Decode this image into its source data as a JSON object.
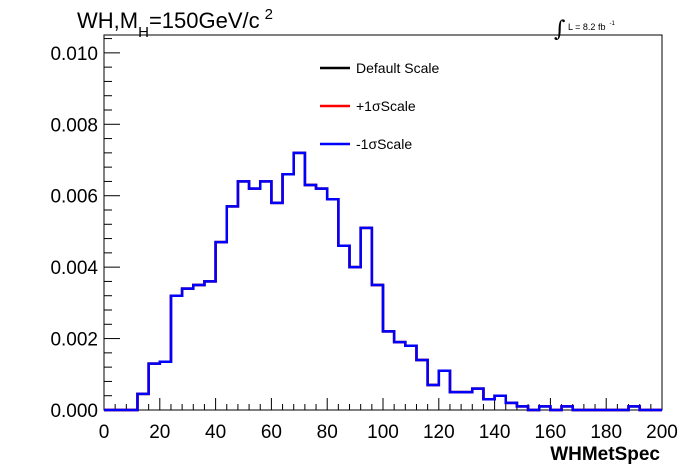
{
  "chart_data": {
    "type": "histogram",
    "title": {
      "prefix": "WH,M",
      "subscript": "H",
      "main": "=150GeV/c",
      "superscript": "2"
    },
    "luminosity": {
      "symbol": "∫",
      "text": "L = 8.2 fb",
      "superscript": "-1"
    },
    "xlabel": "WHMetSpec",
    "ylabel": "",
    "xlim": [
      0,
      200
    ],
    "ylim": [
      0,
      0.0105
    ],
    "xticks": [
      0,
      20,
      40,
      60,
      80,
      100,
      120,
      140,
      160,
      180,
      200
    ],
    "xtick_labels": [
      "0",
      "20",
      "40",
      "60",
      "80",
      "100",
      "120",
      "140",
      "160",
      "180",
      "200"
    ],
    "yticks": [
      0,
      0.002,
      0.004,
      0.006,
      0.008,
      0.01
    ],
    "ytick_labels": [
      "0.000",
      "0.002",
      "0.004",
      "0.006",
      "0.008",
      "0.010"
    ],
    "bin_edges": [
      0,
      4,
      8,
      12,
      16,
      20,
      24,
      28,
      32,
      36,
      40,
      44,
      48,
      52,
      56,
      60,
      64,
      68,
      72,
      76,
      80,
      84,
      88,
      92,
      96,
      100,
      104,
      108,
      112,
      116,
      120,
      124,
      128,
      132,
      136,
      140,
      144,
      148,
      152,
      156,
      160,
      164,
      168,
      172,
      176,
      180,
      184,
      188,
      192,
      196,
      200
    ],
    "legend": {
      "position": "top-center",
      "entries": [
        {
          "label": "Default Scale",
          "color": "#000000"
        },
        {
          "label": "+1σScale",
          "color": "#ff0000"
        },
        {
          "label": "-1σScale",
          "color": "#0000ff"
        }
      ]
    },
    "series": [
      {
        "name": "Default Scale",
        "color": "#000000",
        "values": [
          0,
          0,
          0,
          0.00045,
          0.0013,
          0.00135,
          0.0032,
          0.0034,
          0.0035,
          0.0036,
          0.0047,
          0.0057,
          0.0064,
          0.0062,
          0.0064,
          0.0058,
          0.0066,
          0.0072,
          0.0063,
          0.0062,
          0.0059,
          0.0046,
          0.004,
          0.0051,
          0.0035,
          0.0022,
          0.0019,
          0.0018,
          0.0014,
          0.0007,
          0.0011,
          0.0005,
          0.0005,
          0.0006,
          0.0003,
          0.0004,
          0.0002,
          0.0001,
          0,
          0.0001,
          0,
          0.0001,
          0,
          0,
          0,
          0,
          0,
          0.0001,
          0,
          0
        ]
      },
      {
        "name": "+1σScale",
        "color": "#ff0000",
        "values": [
          0,
          0,
          0,
          0.00045,
          0.0013,
          0.00135,
          0.0032,
          0.0034,
          0.0035,
          0.0036,
          0.0047,
          0.0057,
          0.0064,
          0.0062,
          0.0064,
          0.0058,
          0.0066,
          0.0072,
          0.0063,
          0.0062,
          0.0059,
          0.0046,
          0.004,
          0.0051,
          0.0035,
          0.0022,
          0.0019,
          0.0018,
          0.0014,
          0.0007,
          0.0011,
          0.0005,
          0.0005,
          0.0006,
          0.0003,
          0.0004,
          0.0002,
          0.0001,
          0,
          0.0001,
          0,
          0.0001,
          0,
          0,
          0,
          0,
          0,
          0.0001,
          0,
          0
        ]
      },
      {
        "name": "-1σScale",
        "color": "#0000ff",
        "values": [
          0,
          0,
          0,
          0.00045,
          0.0013,
          0.00135,
          0.0032,
          0.0034,
          0.0035,
          0.0036,
          0.0047,
          0.0057,
          0.0064,
          0.0062,
          0.0064,
          0.0058,
          0.0066,
          0.0072,
          0.0063,
          0.0062,
          0.0059,
          0.0046,
          0.004,
          0.0051,
          0.0035,
          0.0022,
          0.0019,
          0.0018,
          0.0014,
          0.0007,
          0.0011,
          0.0005,
          0.0005,
          0.0006,
          0.0003,
          0.0004,
          0.0002,
          0.0001,
          0,
          0.0001,
          0,
          0.0001,
          0,
          0,
          0,
          0,
          0,
          0.0001,
          0,
          0
        ]
      }
    ]
  }
}
